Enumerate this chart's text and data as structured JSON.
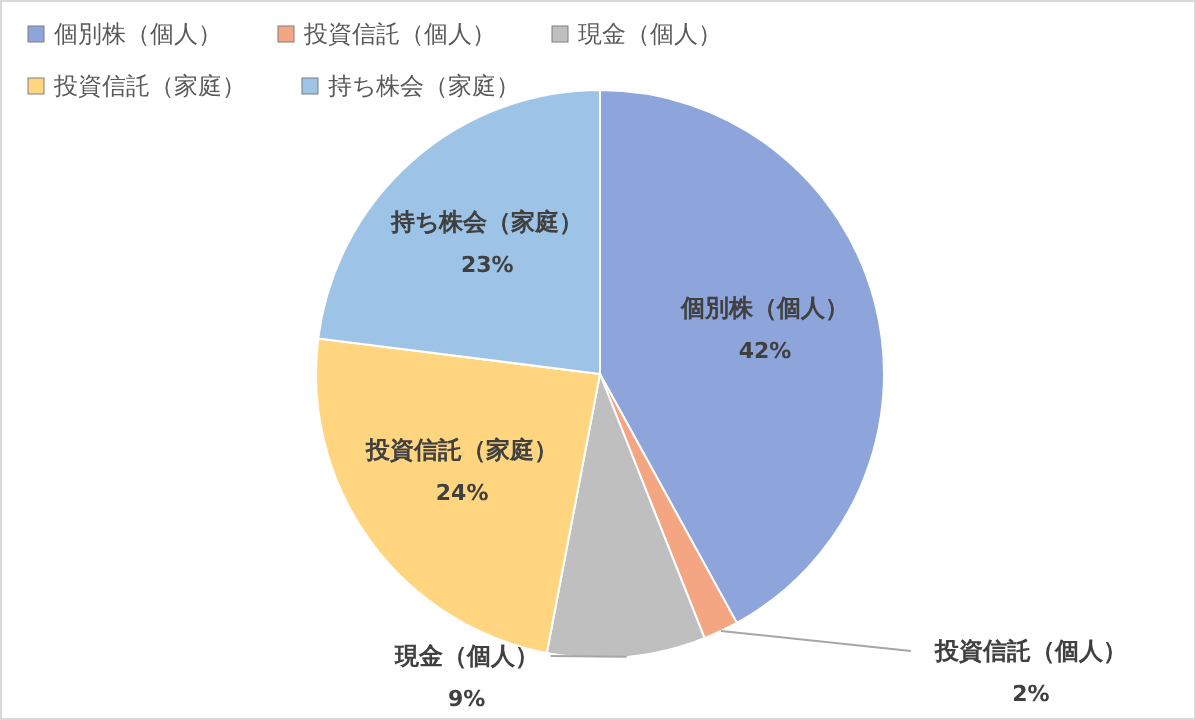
{
  "chart_data": {
    "type": "pie",
    "categories": [
      "個別株（個人）",
      "投資信託（個人）",
      "現金（個人）",
      "投資信託（家庭）",
      "持ち株会（家庭）"
    ],
    "values": [
      42,
      2,
      9,
      24,
      23
    ],
    "colors": [
      "#8ea5dc",
      "#f4a582",
      "#bfbfbf",
      "#ffd580",
      "#9dc3e6"
    ],
    "value_labels": [
      "42%",
      "2%",
      "9%",
      "24%",
      "23%"
    ],
    "legend": "top left"
  }
}
